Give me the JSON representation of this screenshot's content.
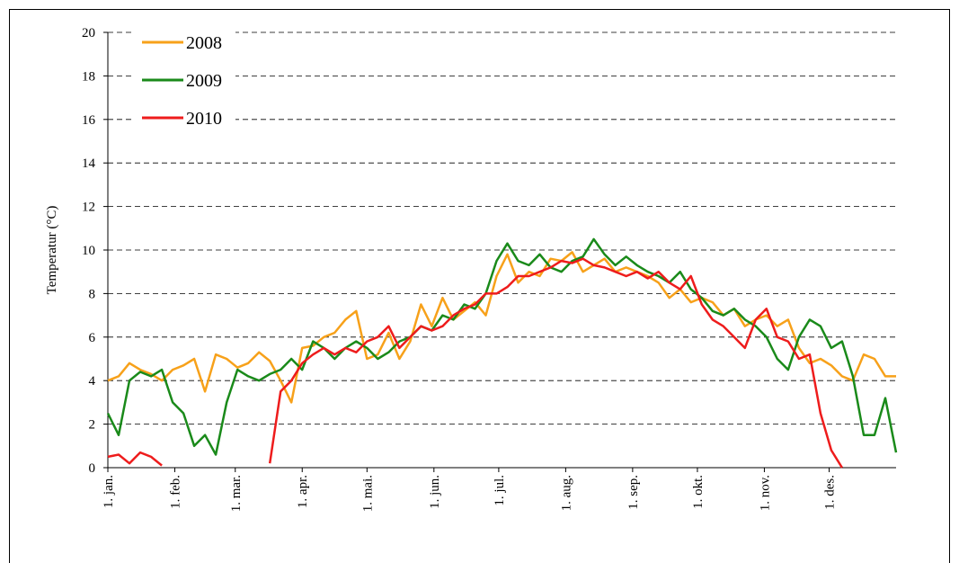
{
  "chart_data": {
    "type": "line",
    "y_label": "Temperatur (°C)",
    "x": [
      1,
      6,
      11,
      16,
      21,
      26,
      31,
      36,
      41,
      46,
      51,
      56,
      61,
      66,
      71,
      76,
      81,
      86,
      91,
      96,
      101,
      106,
      111,
      116,
      121,
      126,
      131,
      136,
      141,
      146,
      151,
      156,
      161,
      166,
      171,
      176,
      181,
      186,
      191,
      196,
      201,
      206,
      211,
      216,
      221,
      226,
      231,
      236,
      241,
      246,
      251,
      256,
      261,
      266,
      271,
      276,
      281,
      286,
      291,
      296,
      301,
      306,
      311,
      316,
      321,
      326,
      331,
      336,
      341,
      346,
      351,
      356,
      361,
      366
    ],
    "xlim": [
      1,
      366
    ],
    "xticks": [
      {
        "value": 1,
        "label": "1. jan."
      },
      {
        "value": 32,
        "label": "1. feb."
      },
      {
        "value": 60,
        "label": "1. mar."
      },
      {
        "value": 91,
        "label": "1. apr."
      },
      {
        "value": 121,
        "label": "1. mai."
      },
      {
        "value": 152,
        "label": "1. jun."
      },
      {
        "value": 182,
        "label": "1. jul."
      },
      {
        "value": 213,
        "label": "1. aug."
      },
      {
        "value": 244,
        "label": "1. sep."
      },
      {
        "value": 274,
        "label": "1. okt."
      },
      {
        "value": 305,
        "label": "1. nov."
      },
      {
        "value": 335,
        "label": "1. des."
      }
    ],
    "ylim": [
      0,
      20
    ],
    "yticks": [
      0,
      2,
      4,
      6,
      8,
      10,
      12,
      14,
      16,
      18,
      20
    ],
    "grid": true,
    "legend": "top-left",
    "series": [
      {
        "name": "2008",
        "color": "#f7a11a",
        "values": [
          4.0,
          4.2,
          4.8,
          4.5,
          4.3,
          4.0,
          4.5,
          4.7,
          5.0,
          3.5,
          5.2,
          5.0,
          4.6,
          4.8,
          5.3,
          4.9,
          4.0,
          3.0,
          5.5,
          5.6,
          6.0,
          6.2,
          6.8,
          7.2,
          5.0,
          5.2,
          6.2,
          5.0,
          5.8,
          7.5,
          6.5,
          7.8,
          6.8,
          7.2,
          7.6,
          7.0,
          8.8,
          9.8,
          8.5,
          9.0,
          8.8,
          9.6,
          9.5,
          9.9,
          9.0,
          9.3,
          9.6,
          9.0,
          9.2,
          9.0,
          8.8,
          8.5,
          7.8,
          8.2,
          7.6,
          7.8,
          7.6,
          7.0,
          7.3,
          6.5,
          6.8,
          7.0,
          6.5,
          6.8,
          5.5,
          4.8,
          5.0,
          4.7,
          4.2,
          4.0,
          5.2,
          5.0,
          4.2,
          4.2
        ]
      },
      {
        "name": "2009",
        "color": "#1a8a1a",
        "values": [
          2.5,
          1.5,
          4.0,
          4.4,
          4.2,
          4.5,
          3.0,
          2.5,
          1.0,
          1.5,
          0.6,
          3.0,
          4.5,
          4.2,
          4.0,
          4.3,
          4.5,
          5.0,
          4.5,
          5.8,
          5.5,
          5.0,
          5.5,
          5.8,
          5.5,
          5.0,
          5.3,
          5.8,
          6.0,
          6.5,
          6.3,
          7.0,
          6.8,
          7.5,
          7.3,
          8.0,
          9.5,
          10.3,
          9.5,
          9.3,
          9.8,
          9.2,
          9.0,
          9.5,
          9.7,
          10.5,
          9.8,
          9.3,
          9.7,
          9.3,
          9.0,
          8.8,
          8.5,
          9.0,
          8.2,
          7.8,
          7.2,
          7.0,
          7.3,
          6.8,
          6.5,
          6.0,
          5.0,
          4.5,
          6.0,
          6.8,
          6.5,
          5.5,
          5.8,
          4.2,
          1.5,
          1.5,
          3.2,
          0.7
        ]
      },
      {
        "name": "2010",
        "color": "#ee1c1c",
        "values": [
          0.5,
          0.6,
          0.2,
          0.7,
          0.5,
          0.1,
          null,
          null,
          null,
          null,
          null,
          null,
          null,
          null,
          null,
          0.2,
          3.5,
          4.0,
          4.8,
          5.2,
          5.5,
          5.2,
          5.5,
          5.3,
          5.8,
          6.0,
          6.5,
          5.5,
          6.0,
          6.5,
          6.3,
          6.5,
          7.0,
          7.3,
          7.5,
          8.0,
          8.0,
          8.3,
          8.8,
          8.8,
          9.0,
          9.2,
          9.5,
          9.4,
          9.6,
          9.3,
          9.2,
          9.0,
          8.8,
          9.0,
          8.7,
          9.0,
          8.5,
          8.2,
          8.8,
          7.5,
          6.8,
          6.5,
          6.0,
          5.5,
          6.8,
          7.3,
          6.0,
          5.8,
          5.0,
          5.2,
          2.5,
          0.8,
          0.0,
          null,
          null,
          null,
          null,
          null
        ]
      }
    ]
  }
}
